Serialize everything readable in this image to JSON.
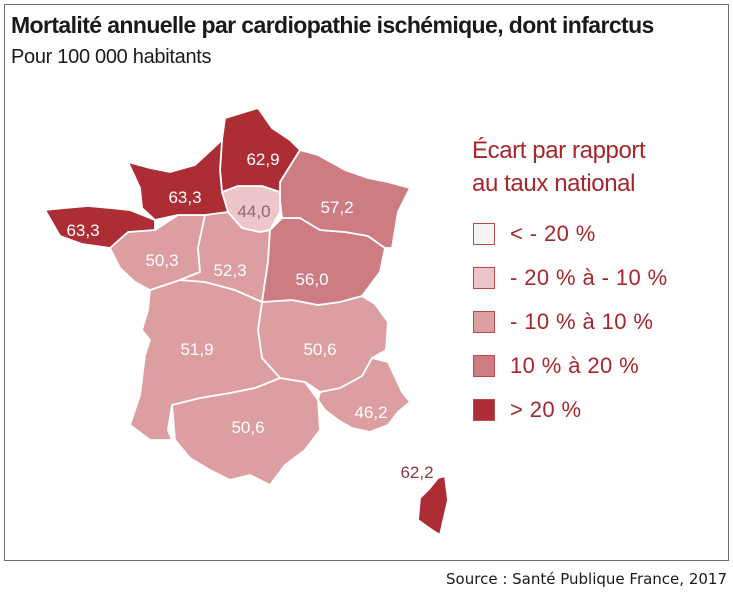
{
  "title": "Mortalité annuelle par cardiopathie ischémique, dont infarctus",
  "subtitle": "Pour 100 000 habitants",
  "legend": {
    "title_line1": "Écart par rapport",
    "title_line2": "au taux national",
    "classes": [
      {
        "label": "< - 20 %",
        "color": "#f8f3f3"
      },
      {
        "label": "- 20 % à - 10 %",
        "color": "#eec5c8"
      },
      {
        "label": "- 10 % à 10 %",
        "color": "#dd9ea2"
      },
      {
        "label": "10 % à 20 %",
        "color": "#cd7c81"
      },
      {
        "label": "> 20 %",
        "color": "#ad2d34"
      }
    ]
  },
  "regions": [
    {
      "id": "hauts-de-france",
      "value": "62,9",
      "class": 4
    },
    {
      "id": "normandie",
      "value": "63,3",
      "class": 4
    },
    {
      "id": "bretagne",
      "value": "63,3",
      "class": 4
    },
    {
      "id": "ile-de-france",
      "value": "44,0",
      "class": 1
    },
    {
      "id": "grand-est",
      "value": "57,2",
      "class": 3
    },
    {
      "id": "pays-de-la-loire",
      "value": "50,3",
      "class": 2
    },
    {
      "id": "centre-val-de-loire",
      "value": "52,3",
      "class": 2
    },
    {
      "id": "bourgogne-franche-comte",
      "value": "56,0",
      "class": 3
    },
    {
      "id": "nouvelle-aquitaine",
      "value": "51,9",
      "class": 2
    },
    {
      "id": "auvergne-rhone-alpes",
      "value": "50,6",
      "class": 2
    },
    {
      "id": "occitanie",
      "value": "50,6",
      "class": 2
    },
    {
      "id": "provence-alpes-cote-d-azur",
      "value": "46,2",
      "class": 2
    },
    {
      "id": "corse",
      "value": "62,2",
      "class": 4
    }
  ],
  "source": "Source : Santé Publique France, 2017"
}
